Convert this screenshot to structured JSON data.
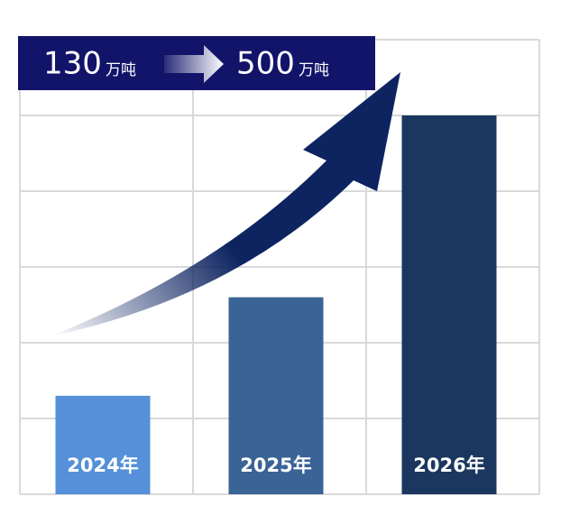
{
  "chart_data": {
    "type": "bar",
    "categories": [
      "2024年",
      "2025年",
      "2026年"
    ],
    "values": [
      130,
      260,
      500
    ],
    "colors": [
      "#5590d8",
      "#3a6396",
      "#1b375f"
    ],
    "ylim": [
      0,
      600
    ],
    "yticks": [
      0,
      100,
      200,
      300,
      400,
      500,
      600
    ],
    "grid": true,
    "annotation": {
      "from": "130",
      "from_unit": "万吨",
      "to": "500",
      "to_unit": "万吨"
    }
  }
}
